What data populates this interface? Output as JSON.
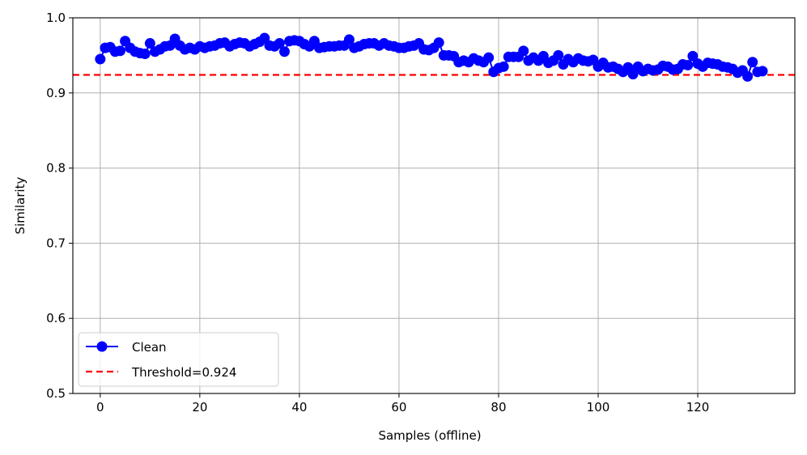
{
  "chart_data": {
    "type": "line",
    "title": "",
    "xlabel": "Samples (offline)",
    "ylabel": "Similarity",
    "xlim": [
      -5.5,
      139.5
    ],
    "ylim": [
      0.5,
      1.0
    ],
    "xticks": [
      0,
      20,
      40,
      60,
      80,
      100,
      120
    ],
    "xtick_labels": [
      "0",
      "20",
      "40",
      "60",
      "80",
      "100",
      "120"
    ],
    "yticks": [
      0.5,
      0.6,
      0.7,
      0.8,
      0.9,
      1.0
    ],
    "ytick_labels": [
      "0.5",
      "0.6",
      "0.7",
      "0.8",
      "0.9",
      "1.0"
    ],
    "grid": true,
    "legend_position": "lower-left",
    "series": [
      {
        "name": "Clean",
        "style": "line-with-markers",
        "color": "#0000ff",
        "x": [
          0,
          1,
          2,
          3,
          4,
          5,
          6,
          7,
          8,
          9,
          10,
          11,
          12,
          13,
          14,
          15,
          16,
          17,
          18,
          19,
          20,
          21,
          22,
          23,
          24,
          25,
          26,
          27,
          28,
          29,
          30,
          31,
          32,
          33,
          34,
          35,
          36,
          37,
          38,
          39,
          40,
          41,
          42,
          43,
          44,
          45,
          46,
          47,
          48,
          49,
          50,
          51,
          52,
          53,
          54,
          55,
          56,
          57,
          58,
          59,
          60,
          61,
          62,
          63,
          64,
          65,
          66,
          67,
          68,
          69,
          70,
          71,
          72,
          73,
          74,
          75,
          76,
          77,
          78,
          79,
          80,
          81,
          82,
          83,
          84,
          85,
          86,
          87,
          88,
          89,
          90,
          91,
          92,
          93,
          94,
          95,
          96,
          97,
          98,
          99,
          100,
          101,
          102,
          103,
          104,
          105,
          106,
          107,
          108,
          109,
          110,
          111,
          112,
          113,
          114,
          115,
          116,
          117,
          118,
          119,
          120,
          121,
          122,
          123,
          124,
          125,
          126,
          127,
          128,
          129,
          130,
          131,
          132,
          133
        ],
        "y": [
          0.945,
          0.96,
          0.961,
          0.955,
          0.956,
          0.969,
          0.96,
          0.955,
          0.953,
          0.952,
          0.966,
          0.955,
          0.958,
          0.962,
          0.963,
          0.972,
          0.963,
          0.958,
          0.96,
          0.958,
          0.962,
          0.96,
          0.962,
          0.963,
          0.966,
          0.967,
          0.962,
          0.965,
          0.967,
          0.966,
          0.962,
          0.965,
          0.968,
          0.973,
          0.963,
          0.962,
          0.966,
          0.955,
          0.969,
          0.97,
          0.969,
          0.965,
          0.962,
          0.969,
          0.96,
          0.961,
          0.962,
          0.962,
          0.963,
          0.963,
          0.971,
          0.96,
          0.962,
          0.965,
          0.966,
          0.966,
          0.963,
          0.966,
          0.963,
          0.962,
          0.96,
          0.96,
          0.962,
          0.963,
          0.966,
          0.958,
          0.957,
          0.96,
          0.967,
          0.95,
          0.95,
          0.949,
          0.941,
          0.943,
          0.941,
          0.946,
          0.943,
          0.941,
          0.947,
          0.928,
          0.933,
          0.935,
          0.948,
          0.948,
          0.948,
          0.956,
          0.943,
          0.947,
          0.943,
          0.949,
          0.94,
          0.943,
          0.95,
          0.938,
          0.945,
          0.941,
          0.946,
          0.943,
          0.942,
          0.944,
          0.935,
          0.94,
          0.934,
          0.935,
          0.932,
          0.928,
          0.934,
          0.925,
          0.935,
          0.929,
          0.932,
          0.93,
          0.931,
          0.936,
          0.935,
          0.931,
          0.932,
          0.938,
          0.937,
          0.949,
          0.939,
          0.935,
          0.94,
          0.939,
          0.938,
          0.935,
          0.934,
          0.932,
          0.927,
          0.93,
          0.922,
          0.941,
          0.928,
          0.929
        ]
      },
      {
        "name": "Threshold=0.924",
        "style": "dashed",
        "color": "#ff0000",
        "y": 0.924
      }
    ]
  }
}
